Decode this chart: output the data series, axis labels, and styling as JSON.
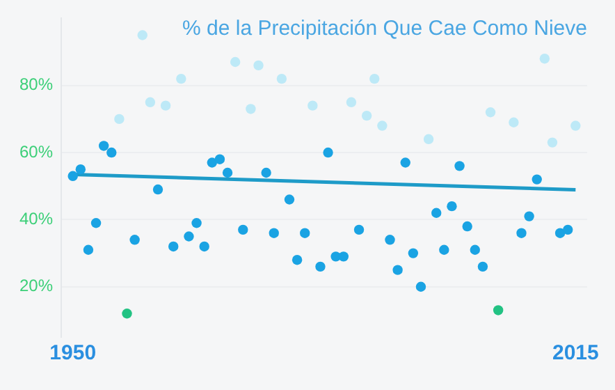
{
  "chart_data": {
    "type": "scatter",
    "title": "% de la Precipitación Que Cae Como Nieve",
    "x": [
      1950,
      1951,
      1952,
      1953,
      1954,
      1955,
      1956,
      1957,
      1958,
      1959,
      1960,
      1961,
      1962,
      1963,
      1964,
      1965,
      1966,
      1967,
      1968,
      1969,
      1970,
      1971,
      1972,
      1973,
      1974,
      1975,
      1976,
      1977,
      1978,
      1979,
      1980,
      1981,
      1982,
      1983,
      1984,
      1985,
      1986,
      1987,
      1988,
      1989,
      1990,
      1991,
      1992,
      1993,
      1994,
      1995,
      1996,
      1997,
      1998,
      1999,
      2000,
      2001,
      2002,
      2003,
      2004,
      2005,
      2006,
      2007,
      2008,
      2009,
      2010,
      2011,
      2012,
      2013,
      2014,
      2015
    ],
    "series": [
      {
        "marker": "circle",
        "values": [
          53,
          55,
          31,
          39,
          62,
          60,
          70,
          12,
          34,
          95,
          75,
          49,
          74,
          32,
          82,
          35,
          39,
          32,
          57,
          58,
          54,
          87,
          37,
          73,
          86,
          54,
          36,
          82,
          46,
          28,
          36,
          74,
          26,
          60,
          29,
          29,
          75,
          37,
          71,
          82,
          68,
          34,
          25,
          57,
          30,
          20,
          64,
          42,
          31,
          44,
          56,
          38,
          31,
          26,
          72,
          13,
          null,
          69,
          36,
          41,
          52,
          88,
          63,
          36,
          37,
          68
        ],
        "colors": [
          "#1aa3e3",
          "#1aa3e3",
          "#1aa3e3",
          "#1aa3e3",
          "#1aa3e3",
          "#1aa3e3",
          "#bde9f7",
          "#22c283",
          "#1aa3e3",
          "#bde9f7",
          "#bde9f7",
          "#1aa3e3",
          "#bde9f7",
          "#1aa3e3",
          "#bde9f7",
          "#1aa3e3",
          "#1aa3e3",
          "#1aa3e3",
          "#1aa3e3",
          "#1aa3e3",
          "#1aa3e3",
          "#bde9f7",
          "#1aa3e3",
          "#bde9f7",
          "#bde9f7",
          "#1aa3e3",
          "#1aa3e3",
          "#bde9f7",
          "#1aa3e3",
          "#1aa3e3",
          "#1aa3e3",
          "#bde9f7",
          "#1aa3e3",
          "#1aa3e3",
          "#1aa3e3",
          "#1aa3e3",
          "#bde9f7",
          "#1aa3e3",
          "#bde9f7",
          "#bde9f7",
          "#bde9f7",
          "#1aa3e3",
          "#1aa3e3",
          "#1aa3e3",
          "#1aa3e3",
          "#1aa3e3",
          "#bde9f7",
          "#1aa3e3",
          "#1aa3e3",
          "#1aa3e3",
          "#1aa3e3",
          "#1aa3e3",
          "#1aa3e3",
          "#1aa3e3",
          "#bde9f7",
          "#22c283",
          "#1aa3e3",
          "#bde9f7",
          "#1aa3e3",
          "#1aa3e3",
          "#1aa3e3",
          "#bde9f7",
          "#bde9f7",
          "#1aa3e3",
          "#1aa3e3",
          "#bde9f7"
        ]
      },
      {
        "type": "line",
        "x": [
          1950,
          2015
        ],
        "values": [
          53.5,
          48.9
        ],
        "color": "#1e9bc8"
      }
    ],
    "xlim": [
      1948.5,
      2016.5
    ],
    "xticks": [
      1950,
      2015
    ],
    "ylim": [
      5,
      100
    ],
    "yticks": [
      {
        "value": 20,
        "label": "20%"
      },
      {
        "value": 40,
        "label": "40%"
      },
      {
        "value": 60,
        "label": "60%"
      },
      {
        "value": 80,
        "label": "80%"
      }
    ],
    "grid": "y",
    "legend": false,
    "line_style": "solid"
  }
}
